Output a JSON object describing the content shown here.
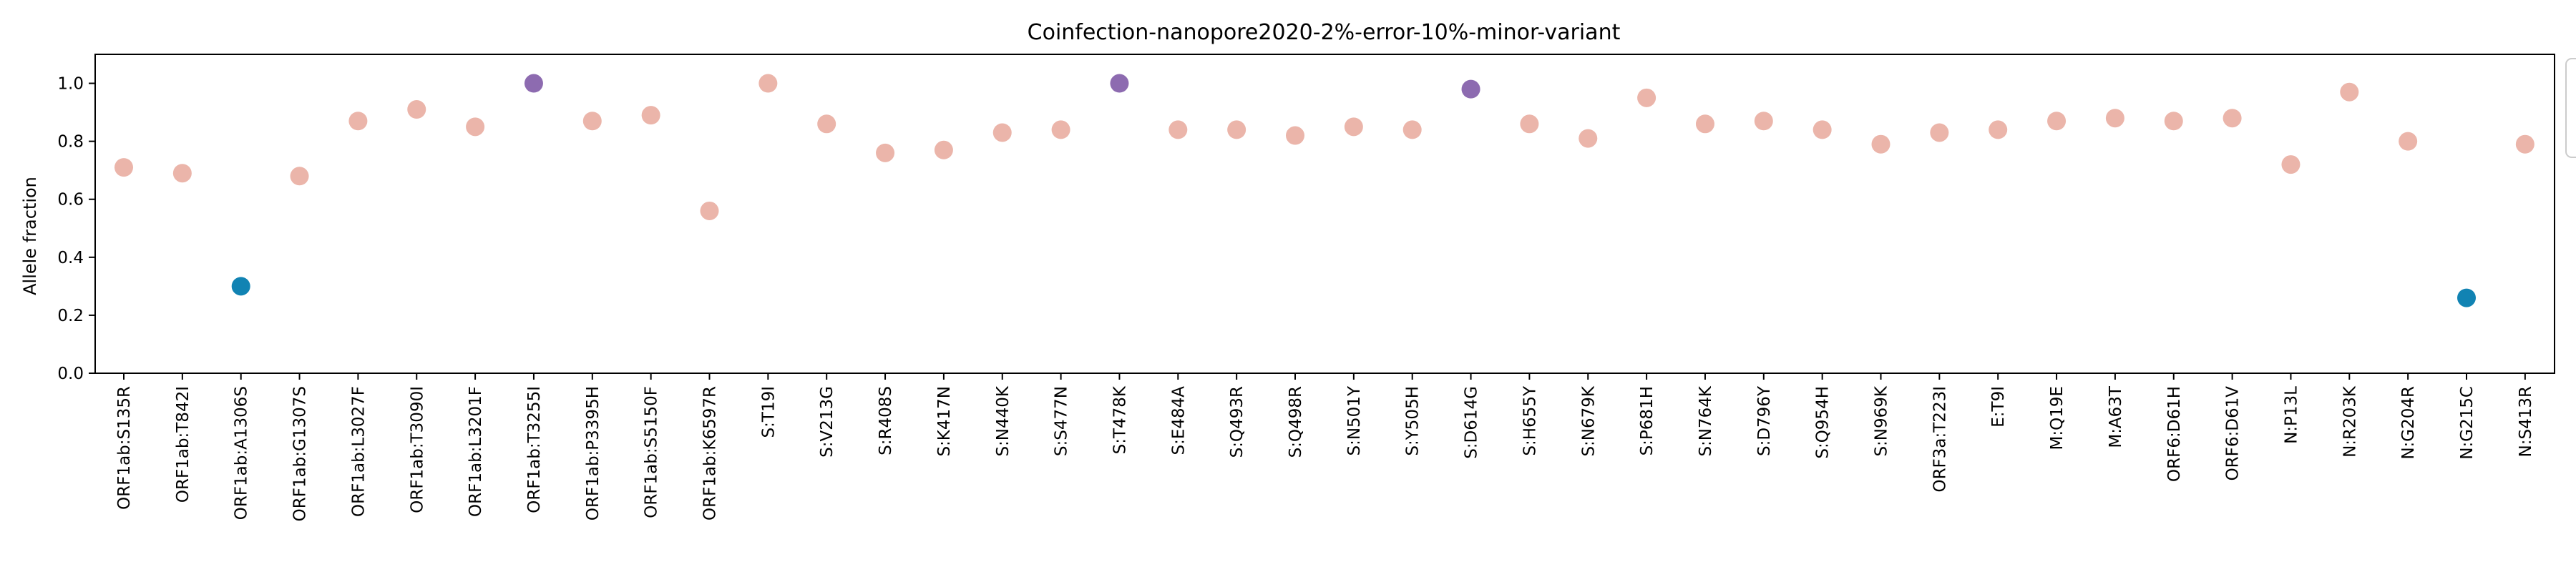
{
  "chart_data": {
    "type": "scatter",
    "title": "Coinfection-nanopore2020-2%-error-10%-minor-variant",
    "xlabel": "",
    "ylabel": "Allele fraction",
    "ylim": [
      0,
      1.1
    ],
    "yticks": [
      0.0,
      0.2,
      0.4,
      0.6,
      0.8,
      1.0
    ],
    "ytick_labels": [
      "0.0",
      "0.2",
      "0.4",
      "0.6",
      "0.8",
      "1.0"
    ],
    "grid": false,
    "legend": "right (clipped, empty)",
    "categories": [
      "ORF1ab:S135R",
      "ORF1ab:T842I",
      "ORF1ab:A1306S",
      "ORF1ab:G1307S",
      "ORF1ab:L3027F",
      "ORF1ab:T3090I",
      "ORF1ab:L3201F",
      "ORF1ab:T3255I",
      "ORF1ab:P3395H",
      "ORF1ab:S5150F",
      "ORF1ab:K6597R",
      "S:T19I",
      "S:V213G",
      "S:R408S",
      "S:K417N",
      "S:N440K",
      "S:S477N",
      "S:T478K",
      "S:E484A",
      "S:Q493R",
      "S:Q498R",
      "S:N501Y",
      "S:Y505H",
      "S:D614G",
      "S:H655Y",
      "S:N679K",
      "S:P681H",
      "S:N764K",
      "S:D796Y",
      "S:Q954H",
      "S:N969K",
      "ORF3a:T223I",
      "E:T9I",
      "M:Q19E",
      "M:A63T",
      "ORF6:D61H",
      "ORF6:D61V",
      "N:P13L",
      "N:R203K",
      "N:G204R",
      "N:G215C",
      "N:S413R"
    ],
    "values": [
      0.71,
      0.69,
      0.3,
      0.68,
      0.87,
      0.91,
      0.85,
      1.0,
      0.87,
      0.89,
      0.56,
      1.0,
      0.86,
      0.76,
      0.77,
      0.83,
      0.84,
      1.0,
      0.84,
      0.84,
      0.82,
      0.85,
      0.84,
      0.98,
      0.86,
      0.81,
      0.95,
      0.86,
      0.87,
      0.84,
      0.79,
      0.83,
      0.84,
      0.87,
      0.88,
      0.87,
      0.88,
      0.72,
      0.97,
      0.8,
      0.26,
      0.79
    ],
    "point_colors": [
      "#ebb5aa",
      "#ebb5aa",
      "#1183b3",
      "#ebb5aa",
      "#ebb5aa",
      "#ebb5aa",
      "#ebb5aa",
      "#8d6bb0",
      "#ebb5aa",
      "#ebb5aa",
      "#ebb5aa",
      "#ebb5aa",
      "#ebb5aa",
      "#ebb5aa",
      "#ebb5aa",
      "#ebb5aa",
      "#ebb5aa",
      "#8d6bb0",
      "#ebb5aa",
      "#ebb5aa",
      "#ebb5aa",
      "#ebb5aa",
      "#ebb5aa",
      "#8d6bb0",
      "#ebb5aa",
      "#ebb5aa",
      "#ebb5aa",
      "#ebb5aa",
      "#ebb5aa",
      "#ebb5aa",
      "#ebb5aa",
      "#ebb5aa",
      "#ebb5aa",
      "#ebb5aa",
      "#ebb5aa",
      "#ebb5aa",
      "#ebb5aa",
      "#ebb5aa",
      "#ebb5aa",
      "#ebb5aa",
      "#1183b3",
      "#ebb5aa"
    ]
  }
}
